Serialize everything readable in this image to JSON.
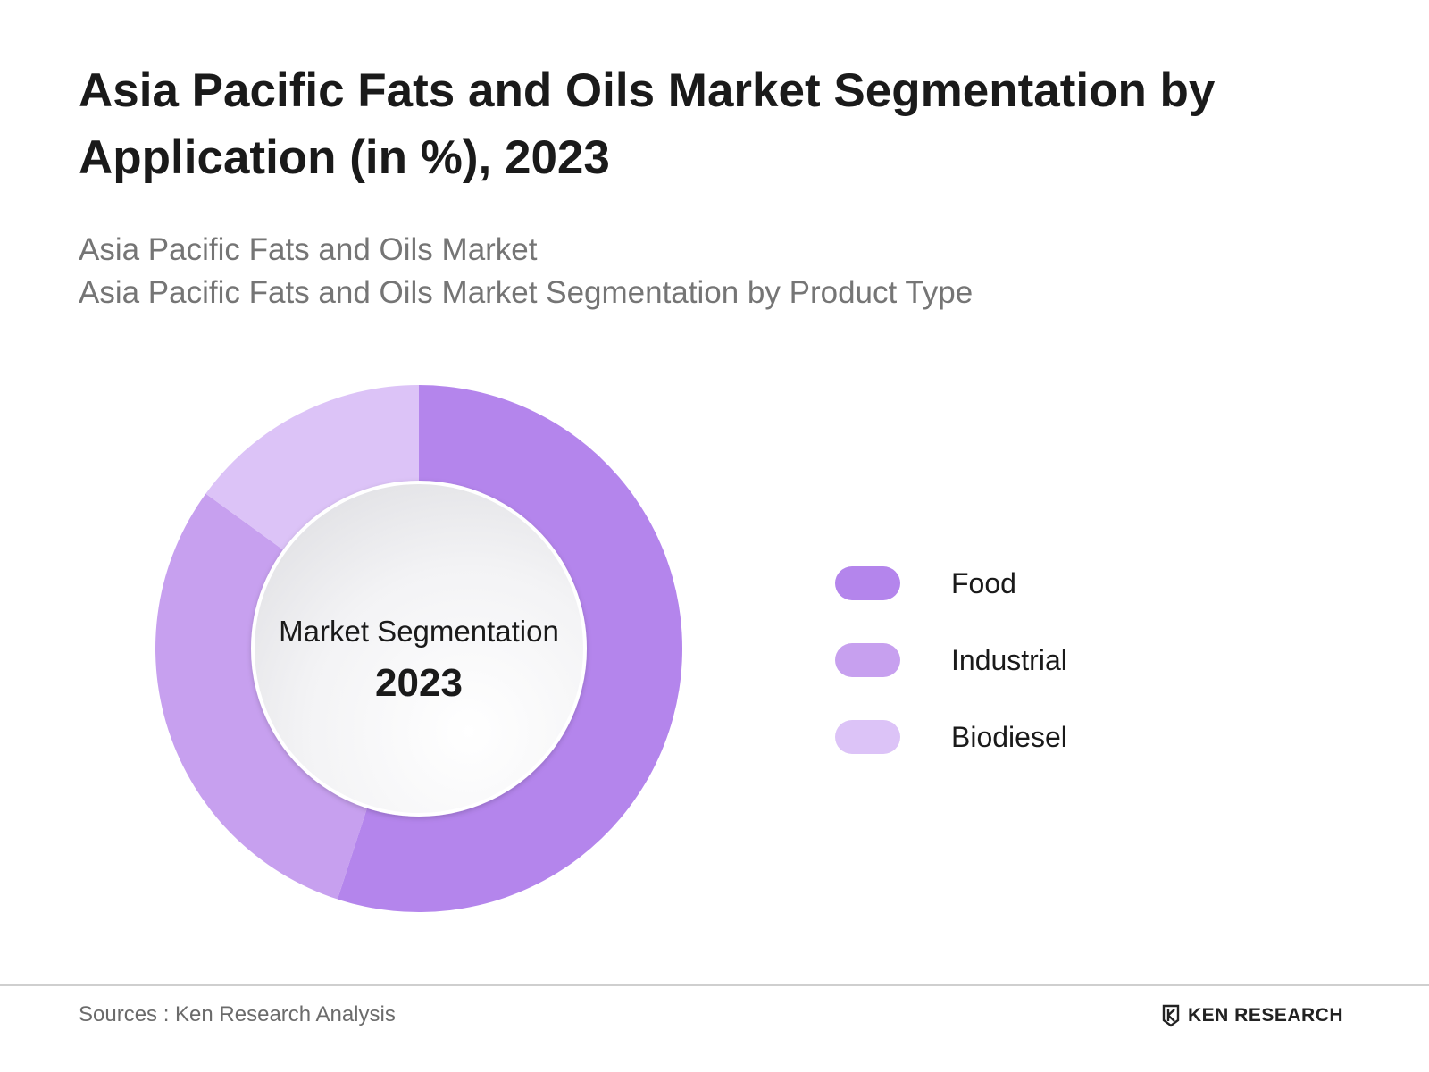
{
  "header": {
    "title": "Asia Pacific Fats and Oils Market Segmentation by Application (in %), 2023",
    "subtitle_1": "Asia Pacific Fats and Oils Market",
    "subtitle_2": "Asia Pacific Fats and Oils Market Segmentation by Product Type"
  },
  "center": {
    "line_1": "Market Segmentation",
    "line_2": "2023"
  },
  "chart_data": {
    "type": "pie",
    "variant": "donut",
    "title": "Asia Pacific Fats and Oils Market Segmentation by Application (in %), 2023",
    "categories": [
      "Food",
      "Industrial",
      "Biodiesel"
    ],
    "values": [
      55,
      30,
      15
    ],
    "unit": "%",
    "colors": [
      "#b485ec",
      "#c7a0ef",
      "#dcc3f7"
    ],
    "legend_position": "right"
  },
  "footer": {
    "source": "Sources : Ken Research Analysis",
    "brand_text": "KEN RESEARCH"
  }
}
